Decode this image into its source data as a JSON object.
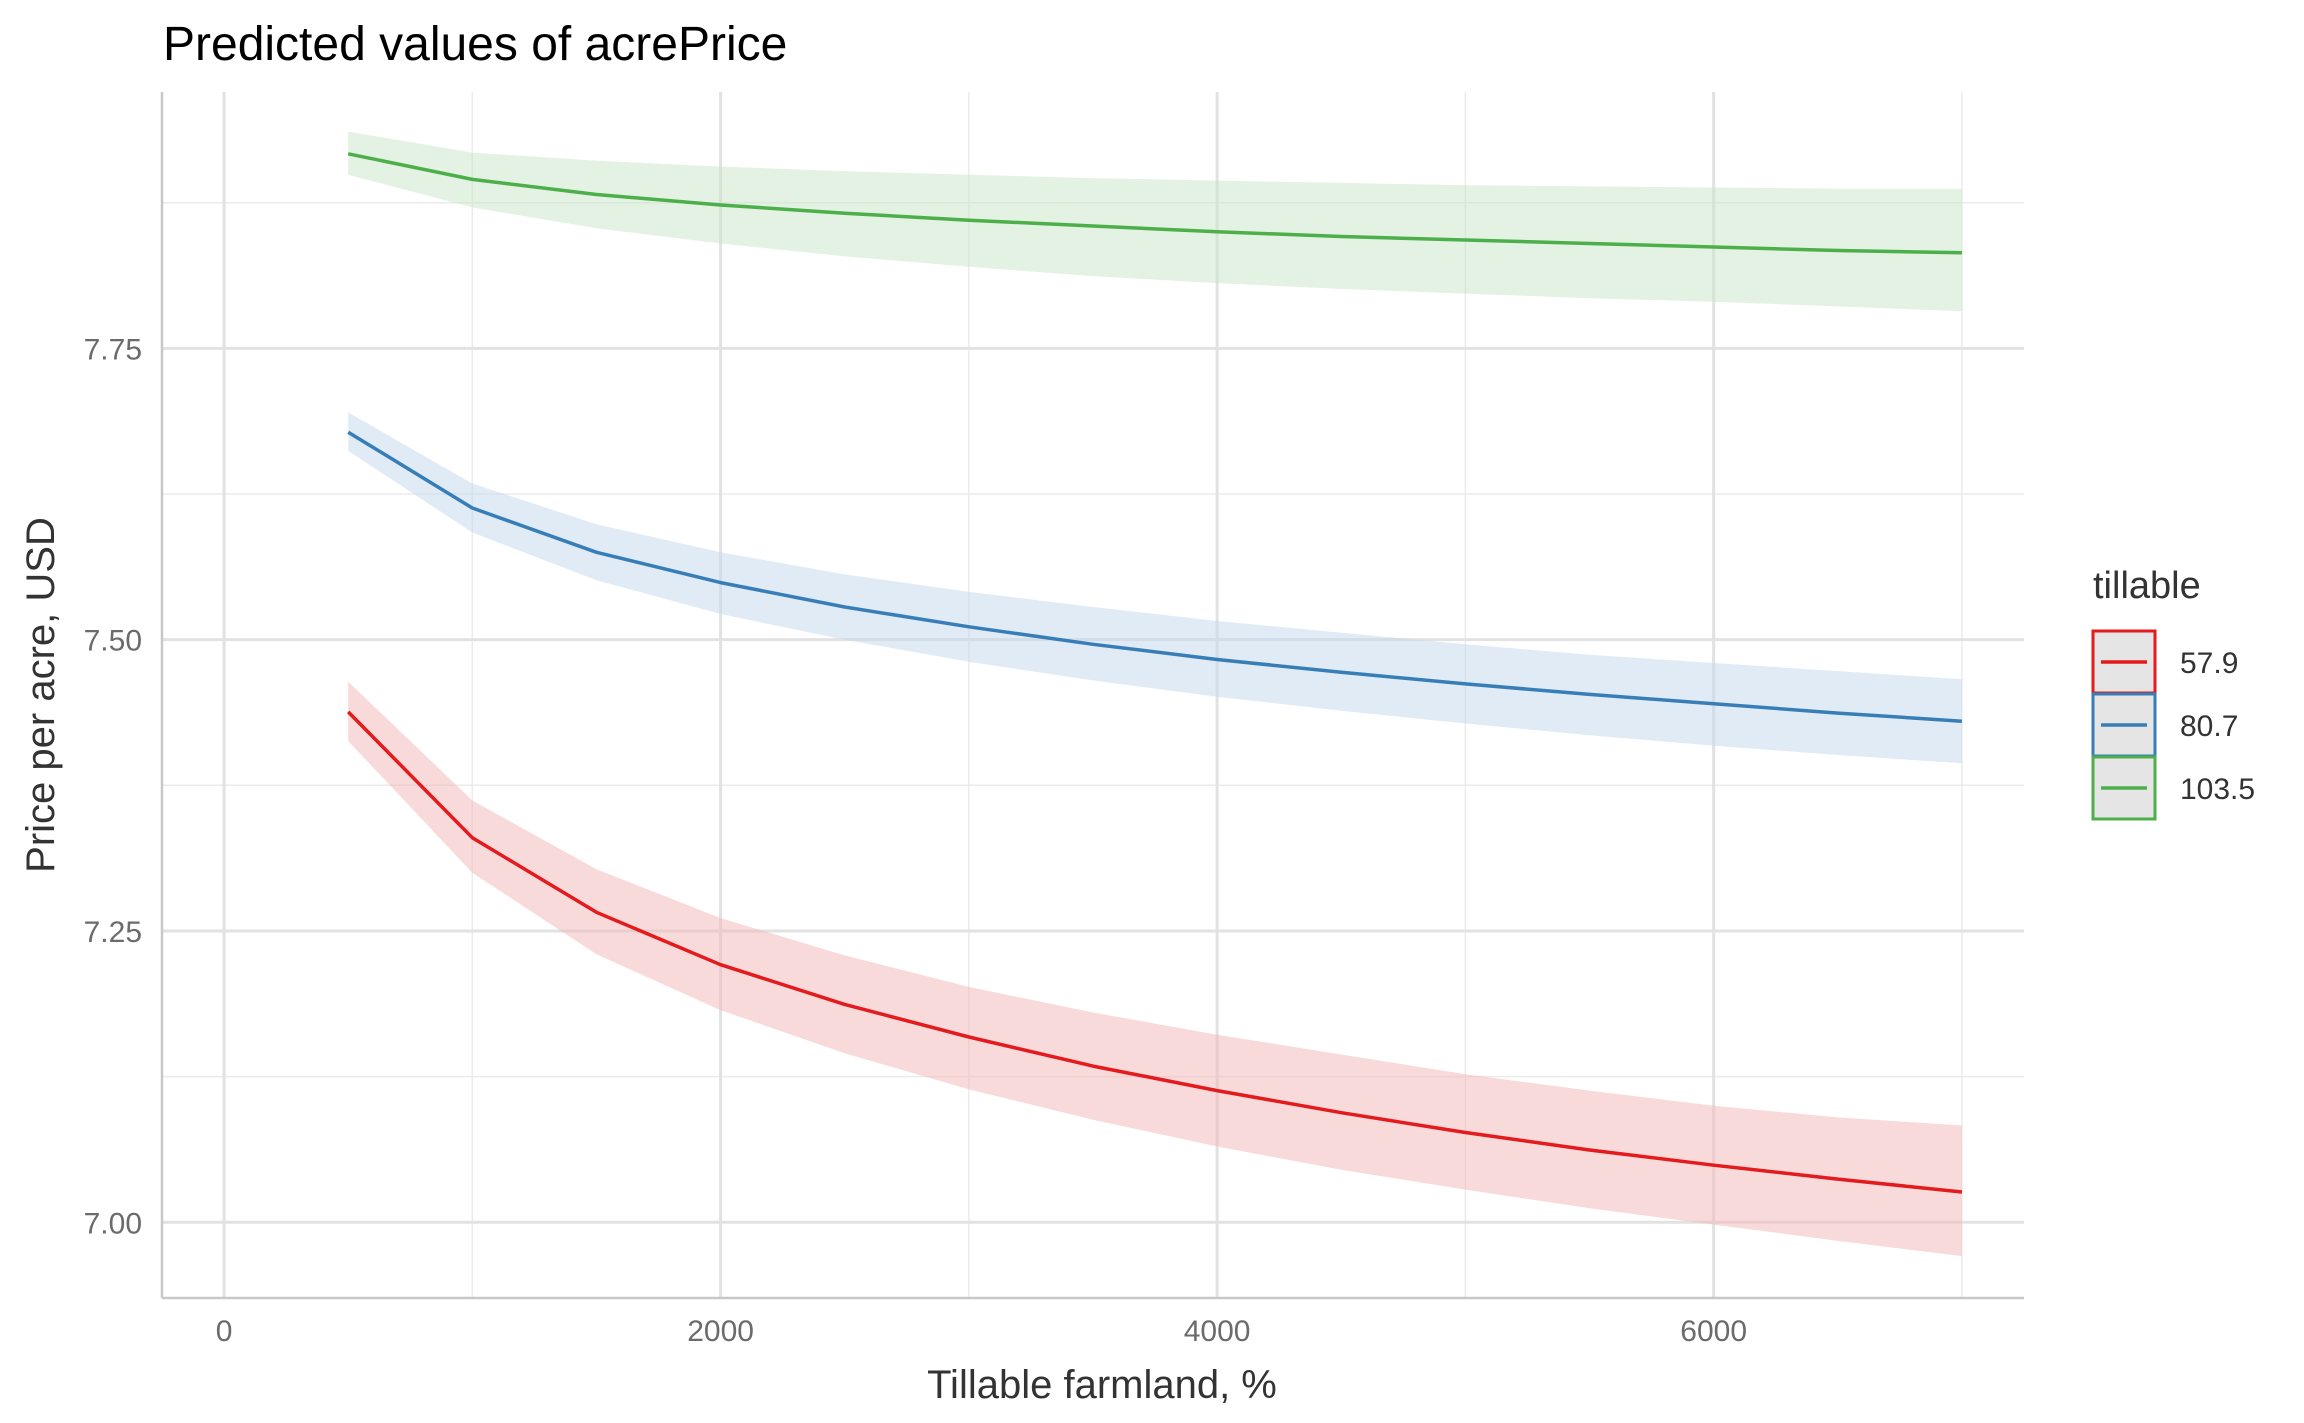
{
  "chart_data": {
    "type": "line",
    "title": "Predicted values of acrePrice",
    "xlabel": "Tillable farmland, %",
    "ylabel": "Price per acre, USD",
    "xlim": [
      -250,
      7250
    ],
    "ylim": [
      6.935,
      7.97
    ],
    "x_ticks": [
      0,
      2000,
      4000,
      6000
    ],
    "x_tick_labels": [
      "0",
      "2000",
      "4000",
      "6000"
    ],
    "x_minor_ticks": [
      1000,
      3000,
      5000,
      7000
    ],
    "y_ticks": [
      7.0,
      7.25,
      7.5,
      7.75
    ],
    "y_tick_labels": [
      "7.00",
      "7.25",
      "7.50",
      "7.75"
    ],
    "y_minor_ticks": [
      7.125,
      7.375,
      7.625,
      7.875
    ],
    "grid": true,
    "legend": {
      "title": "tillable",
      "placement": "right"
    },
    "x": [
      500,
      1000,
      1500,
      2000,
      2500,
      3000,
      3500,
      4000,
      4500,
      5000,
      5500,
      6000,
      6500,
      7000
    ],
    "series": [
      {
        "name": "57.9",
        "color": "#e41a1c",
        "fill_color": "#f4b6b8",
        "values": [
          7.438,
          7.33,
          7.266,
          7.221,
          7.187,
          7.159,
          7.134,
          7.113,
          7.094,
          7.077,
          7.062,
          7.049,
          7.037,
          7.026
        ],
        "lower": [
          7.413,
          7.3,
          7.23,
          7.182,
          7.145,
          7.114,
          7.088,
          7.065,
          7.045,
          7.028,
          7.012,
          6.998,
          6.984,
          6.971
        ],
        "upper": [
          7.464,
          7.362,
          7.303,
          7.261,
          7.229,
          7.202,
          7.18,
          7.161,
          7.144,
          7.127,
          7.113,
          7.1,
          7.09,
          7.083
        ]
      },
      {
        "name": "80.7",
        "color": "#377eb8",
        "fill_color": "#c3d8ec",
        "values": [
          7.678,
          7.613,
          7.575,
          7.549,
          7.528,
          7.511,
          7.496,
          7.483,
          7.472,
          7.462,
          7.453,
          7.445,
          7.437,
          7.43
        ],
        "lower": [
          7.662,
          7.592,
          7.551,
          7.522,
          7.5,
          7.481,
          7.465,
          7.451,
          7.439,
          7.428,
          7.418,
          7.409,
          7.401,
          7.394
        ],
        "upper": [
          7.695,
          7.634,
          7.599,
          7.575,
          7.556,
          7.541,
          7.528,
          7.516,
          7.506,
          7.496,
          7.487,
          7.48,
          7.473,
          7.466
        ]
      },
      {
        "name": "103.5",
        "color": "#4daf4a",
        "fill_color": "#c8e5c6",
        "values": [
          7.917,
          7.895,
          7.882,
          7.873,
          7.866,
          7.86,
          7.855,
          7.85,
          7.846,
          7.843,
          7.84,
          7.837,
          7.834,
          7.832
        ],
        "lower": [
          7.899,
          7.871,
          7.853,
          7.84,
          7.829,
          7.82,
          7.812,
          7.806,
          7.801,
          7.797,
          7.793,
          7.79,
          7.786,
          7.782
        ],
        "upper": [
          7.936,
          7.918,
          7.911,
          7.906,
          7.902,
          7.899,
          7.896,
          7.894,
          7.892,
          7.89,
          7.889,
          7.888,
          7.887,
          7.887
        ]
      }
    ]
  }
}
